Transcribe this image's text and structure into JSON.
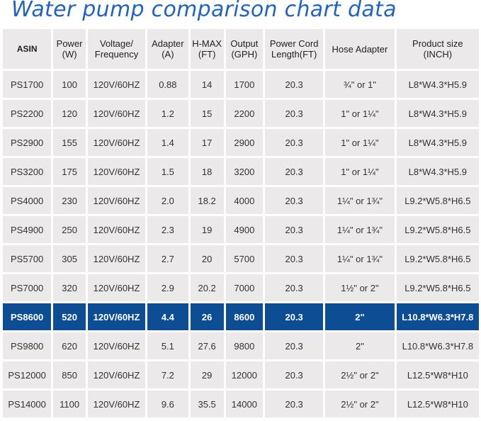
{
  "title": "Water pump comparison chart data",
  "chart_data": {
    "type": "table",
    "title": "Water pump comparison chart data",
    "columns": [
      "ASIN",
      "Power (W)",
      "Voltage/ Frequency",
      "Adapter (A)",
      "H-MAX (FT)",
      "Output (GPH)",
      "Power Cord Length(FT)",
      "Hose Adapter",
      "Product size (INCH)"
    ],
    "highlighted_row": "PS8600",
    "highlight_color": "#0c4d93",
    "rows": [
      [
        "PS1700",
        "100",
        "120V/60HZ",
        "0.88",
        "14",
        "1700",
        "20.3",
        "¾\" or 1\"",
        "L8*W4.3*H5.9"
      ],
      [
        "PS2200",
        "120",
        "120V/60HZ",
        "1.2",
        "15",
        "2200",
        "20.3",
        "1\" or 1¼\"",
        "L8*W4.3*H5.9"
      ],
      [
        "PS2900",
        "155",
        "120V/60HZ",
        "1.4",
        "17",
        "2900",
        "20.3",
        "1\" or 1¼\"",
        "L8*W4.3*H5.9"
      ],
      [
        "PS3200",
        "175",
        "120V/60HZ",
        "1.5",
        "18",
        "3200",
        "20.3",
        "1\" or 1¼\"",
        "L8*W4.3*H5.9"
      ],
      [
        "PS4000",
        "230",
        "120V/60HZ",
        "2.0",
        "18.2",
        "4000",
        "20.3",
        "1¼\" or 1¾\"",
        "L9.2*W5.8*H6.5"
      ],
      [
        "PS4900",
        "250",
        "120V/60HZ",
        "2.3",
        "19",
        "4900",
        "20.3",
        "1¼\" or 1¾\"",
        "L9.2*W5.8*H6.5"
      ],
      [
        "PS5700",
        "305",
        "120V/60HZ",
        "2.7",
        "20",
        "5700",
        "20.3",
        "1¼\" or 1¾\"",
        "L9.2*W5.8*H6.5"
      ],
      [
        "PS7000",
        "320",
        "120V/60HZ",
        "2.9",
        "20.2",
        "7000",
        "20.3",
        "1½\" or 2\"",
        "L9.2*W5.8*H6.5"
      ],
      [
        "PS8600",
        "520",
        "120V/60HZ",
        "4.4",
        "26",
        "8600",
        "20.3",
        "2\"",
        "L10.8*W6.3*H7.8"
      ],
      [
        "PS9800",
        "620",
        "120V/60HZ",
        "5.1",
        "27.6",
        "9800",
        "20.3",
        "2\"",
        "L10.8*W6.3*H7.8"
      ],
      [
        "PS12000",
        "850",
        "120V/60HZ",
        "7.2",
        "29",
        "12000",
        "20.3",
        "2½\" or 2\"",
        "L12.5*W8*H10"
      ],
      [
        "PS14000",
        "1100",
        "120V/60HZ",
        "9.6",
        "35.5",
        "14000",
        "20.3",
        "2½\" or 2\"",
        "L12.5*W8*H10"
      ]
    ]
  },
  "header": {
    "asin": "ASIN",
    "power_1": "Power",
    "power_2": "(W)",
    "voltage_1": "Voltage/",
    "voltage_2": "Frequency",
    "adapter_1": "Adapter",
    "adapter_2": "(A)",
    "hmax_1": "H-MAX",
    "hmax_2": "(FT)",
    "output_1": "Output",
    "output_2": "(GPH)",
    "cord_1": "Power Cord",
    "cord_2": "Length(FT)",
    "hose": "Hose Adapter",
    "size_1": "Product size",
    "size_2": "(INCH)"
  }
}
